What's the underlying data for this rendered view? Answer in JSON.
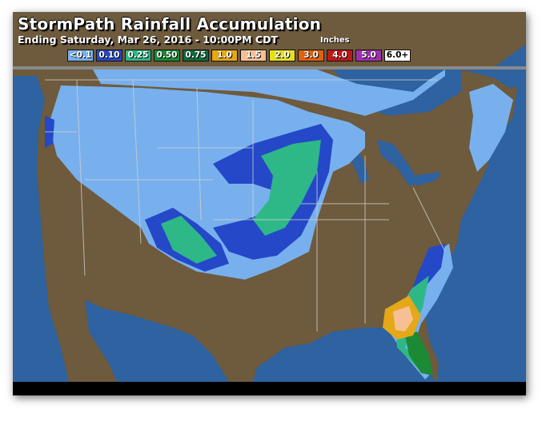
{
  "header": {
    "title": "StormPath Rainfall Accumulation",
    "subtitle": "Ending Saturday, Mar 26, 2016 - 10:00PM CDT",
    "units": "Inches"
  },
  "legend": [
    {
      "label": "<0.1",
      "color": "#78b0ee"
    },
    {
      "label": "0.10",
      "color": "#2448c8"
    },
    {
      "label": "0.25",
      "color": "#2eb888"
    },
    {
      "label": "0.50",
      "color": "#1c8a34"
    },
    {
      "label": "0.75",
      "color": "#106a3c"
    },
    {
      "label": "1.0",
      "color": "#e4a818"
    },
    {
      "label": "1.5",
      "color": "#f6c094"
    },
    {
      "label": "2.0",
      "color": "#e4e020"
    },
    {
      "label": "3.0",
      "color": "#e06010"
    },
    {
      "label": "4.0",
      "color": "#c01818"
    },
    {
      "label": "5.0",
      "color": "#a030b0"
    },
    {
      "label": "6.0+",
      "color": "#ffffff"
    }
  ],
  "colors": {
    "ocean": "#2e62a0",
    "land": "#6e5a3c",
    "borders": "#c8c8c8"
  }
}
